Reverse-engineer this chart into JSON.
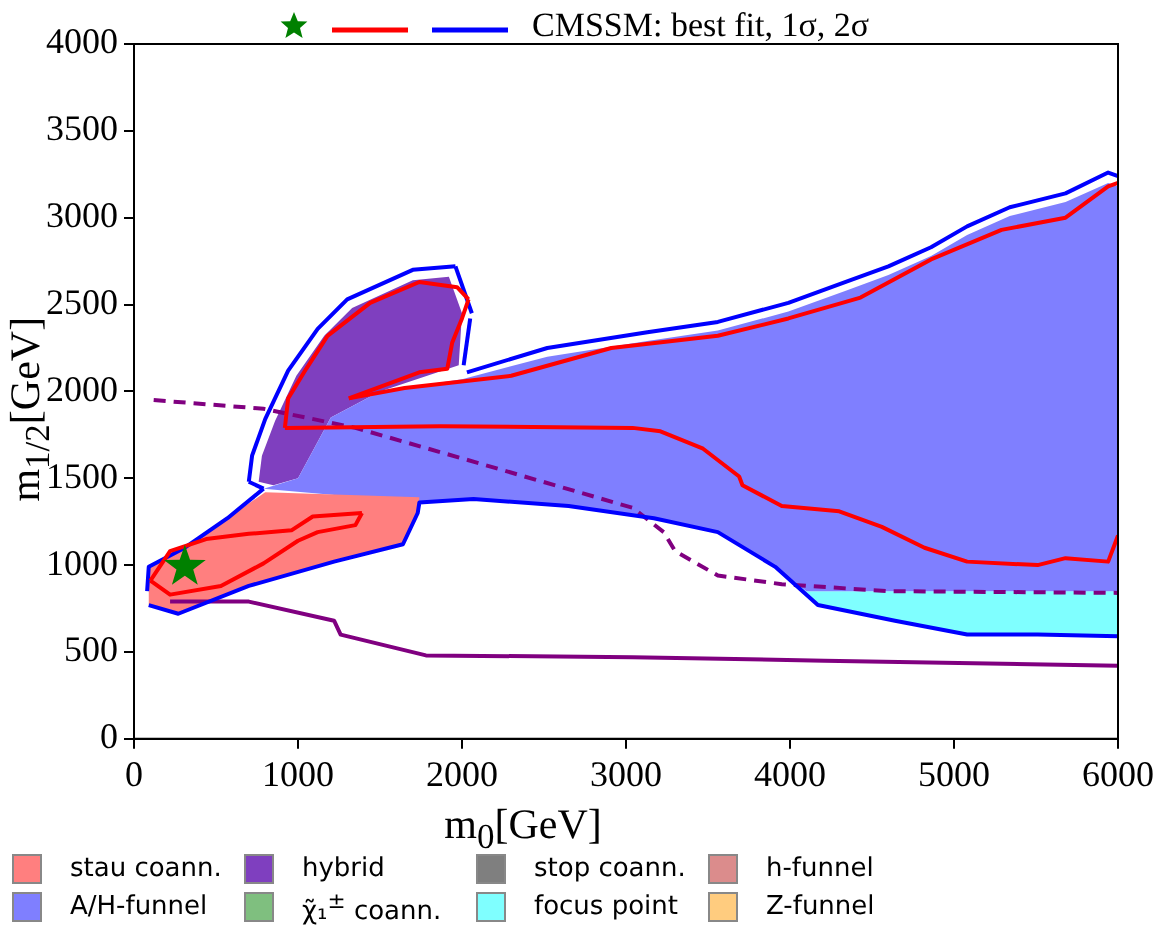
{
  "chart_data": {
    "type": "line",
    "xlabel": "m$_{0}$[GeV]",
    "ylabel": "m$_{1/2}$[GeV]",
    "legend_title": "CMSSM: best fit, 1σ, 2σ",
    "legend": "bottom",
    "grid": false,
    "xlim": [
      0,
      6000
    ],
    "xticks": [
      0,
      1000,
      2000,
      3000,
      4000,
      5000,
      6000
    ],
    "ylim": [
      0,
      4000
    ],
    "yticks": [
      0,
      500,
      1000,
      1500,
      2000,
      2500,
      3000,
      3500,
      4000
    ],
    "series": [
      {
        "type": "scatter",
        "marker": "star",
        "color": "#008000",
        "x": [
          310
        ],
        "values": [
          990
        ]
      },
      {
        "color": "#ff0000",
        "x": [
          100,
          220,
          440,
          700,
          960,
          1090,
          1390
        ],
        "values": [
          910,
          1080,
          1150,
          1180,
          1200,
          1280,
          1300
        ]
      },
      {
        "color": "#ff0000",
        "x": [
          100,
          220,
          530,
          790,
          1000,
          1120,
          1350,
          1390
        ],
        "values": [
          910,
          830,
          880,
          1010,
          1140,
          1190,
          1230,
          1300
        ]
      },
      {
        "color": "#ff0000",
        "x": [
          920,
          940,
          1050,
          1180,
          1440,
          1740,
          1970,
          2040
        ],
        "values": [
          1790,
          1960,
          2130,
          2320,
          2510,
          2630,
          2600,
          2530
        ]
      },
      {
        "color": "#ff0000",
        "x": [
          920,
          1870,
          3040,
          3210,
          3470,
          3690,
          3710,
          3950,
          4300,
          4560,
          4820,
          5080,
          5510,
          5680,
          5940,
          6000
        ],
        "values": [
          1790,
          1800,
          1790,
          1770,
          1670,
          1510,
          1460,
          1340,
          1310,
          1220,
          1100,
          1020,
          1000,
          1040,
          1020,
          1170
        ]
      },
      {
        "color": "#ff0000",
        "x": [
          1310,
          1650,
          2300,
          2910,
          3560,
          3990,
          4430,
          4860,
          5290,
          5680,
          5940,
          6000
        ],
        "values": [
          1960,
          2020,
          2090,
          2250,
          2320,
          2420,
          2540,
          2760,
          2930,
          3000,
          3180,
          3200
        ]
      },
      {
        "color": "#ff0000",
        "x": [
          1310,
          1740,
          1910,
          1940,
          2000,
          2040
        ],
        "values": [
          1960,
          2110,
          2130,
          2280,
          2420,
          2530
        ]
      },
      {
        "color": "#0000ff",
        "x": [
          90,
          270,
          700,
          1220,
          1640,
          1730,
          1740,
          2070,
          2650,
          3170,
          3560,
          3910,
          4170,
          4640,
          5080,
          5510,
          6000
        ],
        "values": [
          770,
          720,
          880,
          1020,
          1120,
          1300,
          1360,
          1380,
          1340,
          1270,
          1190,
          990,
          770,
          680,
          600,
          600,
          590
        ]
      },
      {
        "color": "#0000ff",
        "x": [
          80,
          90,
          310,
          570,
          790
        ],
        "values": [
          850,
          990,
          1100,
          1270,
          1440
        ]
      },
      {
        "color": "#0000ff",
        "x": [
          700,
          790
        ],
        "values": [
          1480,
          1440
        ]
      },
      {
        "color": "#0000ff",
        "x": [
          700,
          720,
          800,
          940,
          1120,
          1300,
          1700,
          1960
        ],
        "values": [
          1480,
          1630,
          1840,
          2120,
          2360,
          2530,
          2700,
          2720
        ]
      },
      {
        "color": "#0000ff",
        "x": [
          1960,
          2060
        ],
        "values": [
          2720,
          2450
        ]
      },
      {
        "color": "#0000ff",
        "x": [
          2010,
          2050
        ],
        "values": [
          2150,
          2420
        ]
      },
      {
        "color": "#0000ff",
        "x": [
          2030,
          2520,
          3130,
          3560,
          3990,
          4340,
          4600,
          4860,
          5080,
          5340,
          5680,
          5940,
          6000
        ],
        "values": [
          2110,
          2250,
          2340,
          2400,
          2510,
          2630,
          2720,
          2830,
          2950,
          3060,
          3140,
          3260,
          3240
        ]
      },
      {
        "color": "#800080",
        "line_style": "dashed",
        "x": [
          120,
          790,
          1350,
          2090,
          3040,
          3230,
          3300,
          3560,
          3950,
          4600,
          6000
        ],
        "values": [
          1950,
          1900,
          1790,
          1590,
          1330,
          1190,
          1080,
          940,
          890,
          850,
          840
        ]
      },
      {
        "color": "#800080",
        "x": [
          220,
          700,
          1220,
          1260,
          1780,
          3040,
          4210,
          6000
        ],
        "values": [
          790,
          790,
          680,
          600,
          480,
          470,
          450,
          420
        ]
      },
      {
        "type": "area",
        "name": "stau coann.",
        "color": "#ff7f7f",
        "x": [
          90,
          90,
          270,
          700,
          1220,
          1640,
          1730,
          1740,
          800,
          570,
          310,
          90
        ],
        "values": [
          990,
          770,
          720,
          880,
          1020,
          1120,
          1300,
          1390,
          1420,
          1270,
          1100,
          990
        ]
      },
      {
        "type": "area",
        "name": "A/H-funnel",
        "color": "#7f7fff",
        "x": [
          790,
          1740,
          2070,
          2650,
          3170,
          3560,
          3910,
          4100,
          6000,
          6000,
          5940,
          5680,
          5340,
          5080,
          4860,
          4600,
          4340,
          3990,
          3560,
          3130,
          2520,
          2000,
          1500,
          1200,
          1000,
          790
        ],
        "values": [
          1440,
          1360,
          1380,
          1340,
          1270,
          1190,
          990,
          850,
          850,
          3180,
          3200,
          3090,
          3010,
          2900,
          2780,
          2670,
          2580,
          2460,
          2350,
          2290,
          2200,
          2070,
          2000,
          1850,
          1500,
          1440
        ]
      },
      {
        "type": "area",
        "name": "hybrid",
        "color": "#7f3fbf",
        "x": [
          760,
          780,
          860,
          990,
          1160,
          1330,
          1700,
          1920,
          2000,
          1980,
          1500,
          1200,
          1000,
          850,
          760
        ],
        "values": [
          1480,
          1630,
          1830,
          2090,
          2320,
          2480,
          2640,
          2660,
          2450,
          2150,
          2000,
          1850,
          1500,
          1460,
          1480
        ]
      },
      {
        "type": "area",
        "name": "χ̃₁$^{±}$ coann.",
        "color": "#7fbf7f"
      },
      {
        "type": "area",
        "name": "stop coann.",
        "color": "#7f7f7f"
      },
      {
        "type": "area",
        "name": "focus point",
        "color": "#7fffff",
        "x": [
          3910,
          4170,
          4640,
          5080,
          5510,
          6000,
          6000,
          4100,
          3910
        ],
        "values": [
          990,
          770,
          680,
          600,
          600,
          590,
          850,
          850,
          990
        ]
      },
      {
        "type": "area",
        "name": "h-funnel",
        "color": "#db8c8c"
      },
      {
        "type": "area",
        "name": "Z-funnel",
        "color": "#ffcc7f"
      }
    ]
  }
}
